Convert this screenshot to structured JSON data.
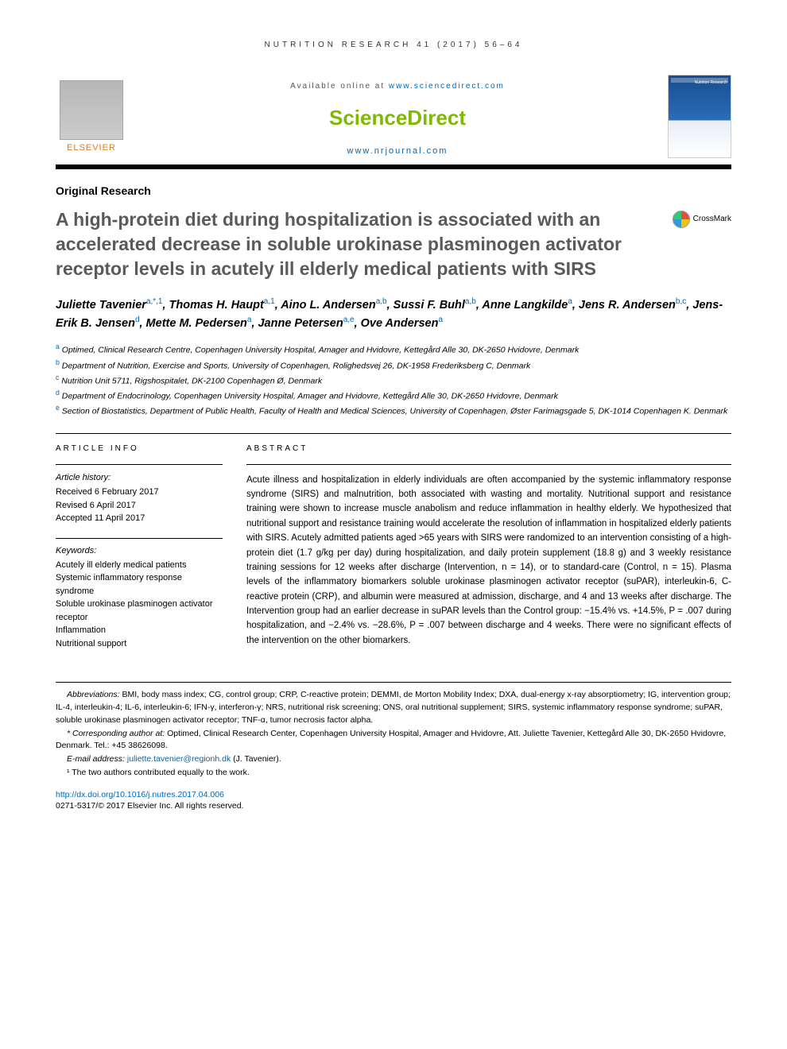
{
  "running_head": "NUTRITION RESEARCH 41 (2017) 56–64",
  "header": {
    "available_prefix": "Available online at ",
    "available_url": "www.sciencedirect.com",
    "sd_logo_text": "ScienceDirect",
    "journal_url": "www.nrjournal.com",
    "elsevier_word": "ELSEVIER",
    "cover_label": "Nutrition Research"
  },
  "article_type": "Original Research",
  "title": "A high-protein diet during hospitalization is associated with an accelerated decrease in soluble urokinase plasminogen activator receptor levels in acutely ill elderly medical patients with SIRS",
  "crossmark_label": "CrossMark",
  "authors_html": "Juliette Tavenier<sup>a,*,1</sup>, Thomas H. Haupt<sup>a,1</sup>, Aino L. Andersen<sup>a,b</sup>, Sussi F. Buhl<sup>a,b</sup>, Anne Langkilde<sup>a</sup>, Jens R. Andersen<sup>b,c</sup>, Jens-Erik B. Jensen<sup>d</sup>, Mette M. Pedersen<sup>a</sup>, Janne Petersen<sup>a,e</sup>, Ove Andersen<sup>a</sup>",
  "affiliations": [
    {
      "sup": "a",
      "text": "Optimed, Clinical Research Centre, Copenhagen University Hospital, Amager and Hvidovre, Kettegård Alle 30, DK-2650 Hvidovre, Denmark"
    },
    {
      "sup": "b",
      "text": "Department of Nutrition, Exercise and Sports, University of Copenhagen, Rolighedsvej 26, DK-1958 Frederiksberg C, Denmark"
    },
    {
      "sup": "c",
      "text": "Nutrition Unit 5711, Rigshospitalet, DK-2100 Copenhagen Ø, Denmark"
    },
    {
      "sup": "d",
      "text": "Department of Endocrinology, Copenhagen University Hospital, Amager and Hvidovre, Kettegård Alle 30, DK-2650 Hvidovre, Denmark"
    },
    {
      "sup": "e",
      "text": "Section of Biostatistics, Department of Public Health, Faculty of Health and Medical Sciences, University of Copenhagen, Øster Farimagsgade 5, DK-1014 Copenhagen K. Denmark"
    }
  ],
  "info": {
    "head": "ARTICLE INFO",
    "history_label": "Article history:",
    "history": [
      "Received 6 February 2017",
      "Revised 6 April 2017",
      "Accepted 11 April 2017"
    ],
    "keywords_label": "Keywords:",
    "keywords": [
      "Acutely ill elderly medical patients",
      "Systemic inflammatory response syndrome",
      "Soluble urokinase plasminogen activator receptor",
      "Inflammation",
      "Nutritional support"
    ]
  },
  "abstract": {
    "head": "ABSTRACT",
    "text": "Acute illness and hospitalization in elderly individuals are often accompanied by the systemic inflammatory response syndrome (SIRS) and malnutrition, both associated with wasting and mortality. Nutritional support and resistance training were shown to increase muscle anabolism and reduce inflammation in healthy elderly. We hypothesized that nutritional support and resistance training would accelerate the resolution of inflammation in hospitalized elderly patients with SIRS. Acutely admitted patients aged >65 years with SIRS were randomized to an intervention consisting of a high-protein diet (1.7 g/kg per day) during hospitalization, and daily protein supplement (18.8 g) and 3 weekly resistance training sessions for 12 weeks after discharge (Intervention, n = 14), or to standard-care (Control, n = 15). Plasma levels of the inflammatory biomarkers soluble urokinase plasminogen activator receptor (suPAR), interleukin-6, C-reactive protein (CRP), and albumin were measured at admission, discharge, and 4 and 13 weeks after discharge. The Intervention group had an earlier decrease in suPAR levels than the Control group: −15.4% vs. +14.5%, P = .007 during hospitalization, and −2.4% vs. −28.6%, P = .007 between discharge and 4 weeks. There were no significant effects of the intervention on the other biomarkers."
  },
  "footnotes": {
    "abbrev_label": "Abbreviations:",
    "abbrev_text": " BMI, body mass index; CG, control group; CRP, C-reactive protein; DEMMI, de Morton Mobility Index; DXA, dual-energy x-ray absorptiometry; IG, intervention group; IL-4, interleukin-4; IL-6, interleukin-6; IFN-γ, interferon-γ; NRS, nutritional risk screening; ONS, oral nutritional supplement; SIRS, systemic inflammatory response syndrome; suPAR, soluble urokinase plasminogen activator receptor; TNF-α, tumor necrosis factor alpha.",
    "corr_label": "* Corresponding author at:",
    "corr_text": " Optimed, Clinical Research Center, Copenhagen University Hospital, Amager and Hvidovre, Att. Juliette Tavenier, Kettegård Alle 30, DK-2650 Hvidovre, Denmark. Tel.: +45 38626098.",
    "email_label": "E-mail address:",
    "email": "juliette.tavenier@regionh.dk",
    "email_suffix": " (J. Tavenier).",
    "note1": "¹ The two authors contributed equally to the work."
  },
  "doi": {
    "url": "http://dx.doi.org/10.1016/j.nutres.2017.04.006",
    "copyright": "0271-5317/© 2017 Elsevier Inc. All rights reserved."
  },
  "colors": {
    "link": "#0066b3",
    "sd_green": "#7fba00",
    "elsevier_orange": "#e67817",
    "title_gray": "#5a5a5a"
  }
}
